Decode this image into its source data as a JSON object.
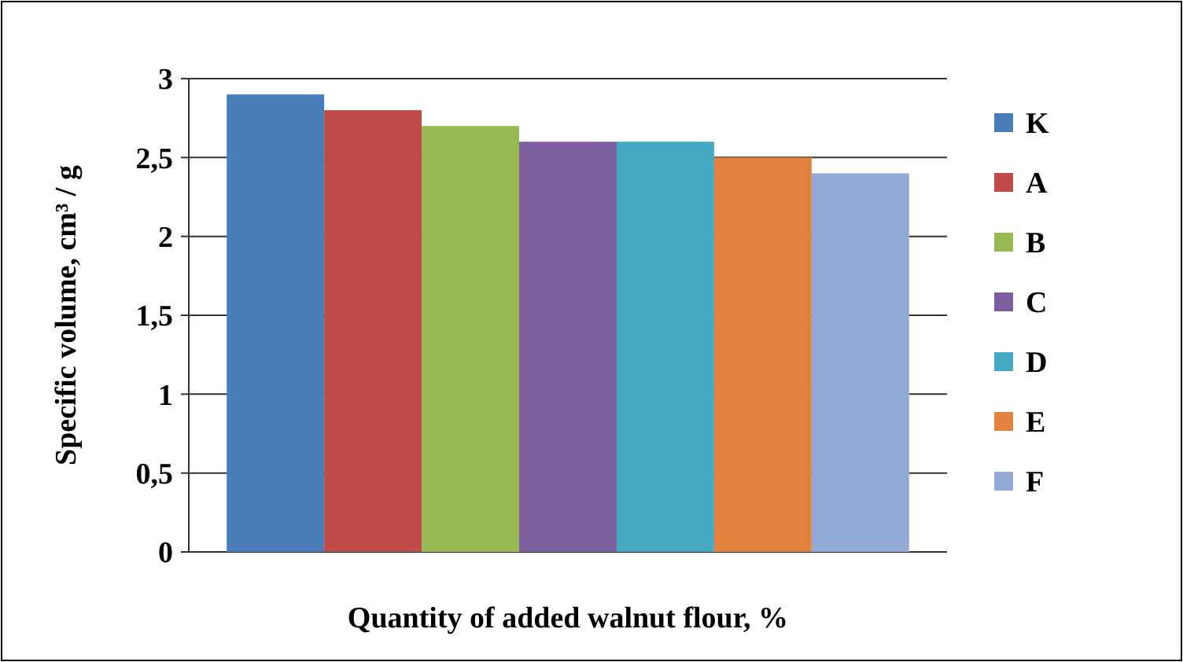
{
  "chart_data": {
    "type": "bar",
    "xlabel": "Quantity of added walnut flour, %",
    "ylabel": "Specific volume, cm³ / g",
    "categories": [
      null
    ],
    "series": [
      {
        "name": "K",
        "color": "#4a7ebb",
        "values": [
          2.9
        ]
      },
      {
        "name": "A",
        "color": "#be4b48",
        "values": [
          2.8
        ]
      },
      {
        "name": "B",
        "color": "#98b954",
        "values": [
          2.7
        ]
      },
      {
        "name": "C",
        "color": "#7d60a0",
        "values": [
          2.6
        ]
      },
      {
        "name": "D",
        "color": "#46aac5",
        "values": [
          2.6
        ]
      },
      {
        "name": "E",
        "color": "#e3823c",
        "values": [
          2.5
        ]
      },
      {
        "name": "F",
        "color": "#94aad6",
        "values": [
          2.4
        ]
      }
    ],
    "ylim": [
      0,
      3
    ],
    "yticks": [
      0,
      {
        "value": 0.5,
        "label": "0,5"
      },
      1,
      {
        "value": 1.5,
        "label": "1,5"
      },
      2,
      {
        "value": 2.5,
        "label": "2,5"
      },
      3
    ],
    "grid": "y",
    "legend": "right"
  }
}
